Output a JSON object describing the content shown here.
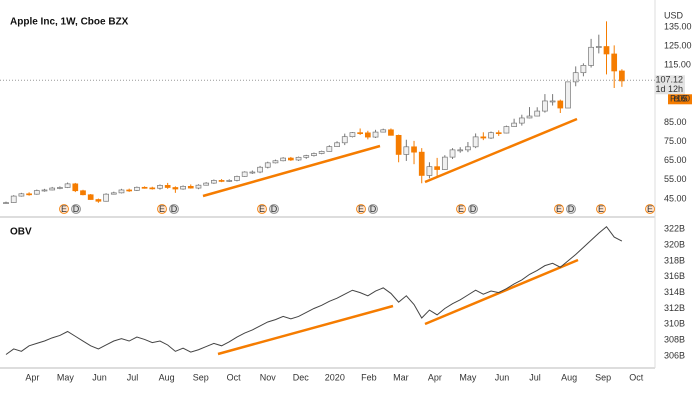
{
  "chart_data": [
    {
      "type": "candlestick",
      "title": "Apple Inc, 1W, Cboe BZX",
      "unit": "USD",
      "open": [
        42.6,
        43.1,
        46.5,
        47.7,
        47.5,
        49.4,
        49.7,
        50.7,
        51.0,
        52.9,
        49.3,
        47.2,
        44.7,
        43.8,
        47.5,
        48.2,
        49.7,
        49.5,
        51.1,
        50.8,
        50.6,
        52.1,
        51.0,
        50.2,
        51.6,
        50.7,
        52.2,
        53.3,
        54.7,
        54.4,
        54.7,
        56.8,
        59.1,
        59.1,
        61.6,
        63.9,
        65.0,
        66.4,
        65.4,
        66.8,
        67.7,
        68.8,
        69.9,
        72.4,
        74.4,
        77.6,
        79.7,
        79.6,
        77.4,
        80.0,
        81.2,
        78.3,
        68.3,
        72.3,
        69.5,
        57.3,
        61.9,
        60.4,
        66.9,
        70.7,
        70.7,
        72.3,
        77.5,
        76.9,
        79.7,
        79.5,
        82.9,
        84.7,
        87.4,
        88.4,
        91.0,
        96.3,
        96.3,
        92.6,
        106.3,
        111.1,
        114.9,
        124.4,
        124.8,
        120.9,
        112.0
      ],
      "high": [
        43.6,
        47.0,
        48.2,
        48.5,
        49.9,
        50.3,
        51.3,
        51.6,
        53.6,
        53.4,
        49.8,
        47.6,
        45.2,
        48.0,
        48.8,
        50.3,
        50.4,
        51.5,
        51.6,
        51.4,
        52.6,
        53.4,
        51.6,
        52.1,
        52.6,
        52.7,
        53.8,
        55.2,
        55.4,
        55.3,
        57.2,
        59.5,
        59.9,
        62.3,
        64.5,
        65.6,
        66.9,
        67.0,
        67.2,
        68.1,
        69.3,
        70.3,
        73.1,
        75.2,
        79.2,
        80.0,
        81.9,
        80.7,
        81.2,
        81.8,
        81.9,
        78.7,
        76.0,
        75.4,
        71.6,
        64.2,
        66.5,
        67.9,
        71.6,
        72.1,
        74.8,
        79.3,
        79.9,
        80.3,
        80.9,
        83.4,
        87.0,
        89.1,
        93.1,
        93.0,
        99.9,
        99.9,
        97.0,
        106.4,
        114.4,
        116.0,
        128.8,
        131.0,
        137.98,
        125.4,
        112.9
      ],
      "low": [
        42.4,
        42.9,
        46.2,
        46.7,
        47.2,
        48.8,
        49.5,
        50.1,
        50.7,
        48.6,
        46.9,
        44.6,
        43.0,
        43.6,
        47.3,
        47.9,
        48.7,
        49.2,
        50.4,
        49.9,
        49.9,
        50.3,
        48.2,
        49.8,
        50.4,
        50.1,
        52.0,
        52.9,
        53.8,
        53.9,
        54.2,
        56.6,
        58.1,
        58.5,
        61.0,
        63.6,
        64.7,
        64.9,
        64.9,
        66.0,
        67.2,
        68.4,
        69.8,
        72.2,
        73.2,
        77.2,
        78.5,
        76.2,
        76.9,
        79.8,
        78.2,
        64.2,
        64.9,
        63.2,
        53.2,
        55.8,
        57.0,
        60.2,
        65.9,
        69.2,
        69.5,
        71.6,
        75.8,
        76.4,
        78.0,
        79.3,
        82.8,
        83.4,
        87.2,
        88.3,
        90.2,
        93.9,
        90.0,
        92.6,
        104.0,
        109.2,
        113.8,
        121.2,
        110.2,
        103.1,
        103.7
      ],
      "close": [
        43.1,
        46.5,
        47.7,
        47.5,
        49.4,
        49.7,
        50.7,
        51.0,
        52.9,
        49.3,
        47.2,
        44.7,
        43.8,
        47.5,
        48.2,
        49.7,
        49.5,
        51.1,
        50.8,
        50.6,
        52.1,
        51.0,
        50.2,
        51.6,
        50.7,
        52.2,
        53.3,
        54.7,
        54.4,
        54.7,
        56.8,
        59.1,
        59.1,
        61.6,
        63.9,
        65.0,
        66.4,
        65.4,
        66.8,
        67.7,
        68.8,
        69.9,
        72.4,
        74.4,
        77.6,
        79.7,
        79.6,
        77.4,
        80.0,
        81.2,
        78.3,
        68.3,
        72.3,
        69.5,
        57.3,
        61.9,
        60.4,
        66.9,
        70.7,
        70.7,
        72.3,
        77.5,
        76.9,
        79.7,
        79.5,
        82.9,
        84.7,
        87.4,
        88.4,
        91.0,
        96.3,
        96.3,
        92.6,
        106.3,
        111.1,
        114.9,
        124.4,
        124.8,
        120.9,
        112.0,
        106.8
      ],
      "up_color": "#f0f0f0",
      "down_color": "#f57c00",
      "last_price": 107.12,
      "countdown": "1d 12h",
      "pre_market_label": "Pre 106.50",
      "event_labels": [
        "E",
        "D",
        "E",
        "D",
        "E",
        "D",
        "E",
        "D",
        "E",
        "D",
        "E",
        "D",
        "E",
        "E"
      ],
      "ylim": [
        36.6,
        141.3
      ],
      "yticks": [
        {
          "value": 45,
          "label": "45.00"
        },
        {
          "value": 55,
          "label": "55.00"
        },
        {
          "value": 65,
          "label": "65.00"
        },
        {
          "value": 75,
          "label": "75.00"
        },
        {
          "value": 85,
          "label": "85.00"
        },
        {
          "value": 115,
          "label": "115.00"
        },
        {
          "value": 125,
          "label": "125.00"
        },
        {
          "value": 135,
          "label": "135.00"
        }
      ]
    },
    {
      "type": "line",
      "title": "OBV",
      "color": "#444444",
      "values": [
        306.2,
        306.9,
        306.6,
        307.3,
        307.6,
        307.9,
        308.3,
        308.6,
        309.1,
        308.5,
        307.9,
        307.3,
        306.9,
        307.4,
        307.9,
        308.2,
        307.9,
        308.4,
        308.1,
        307.7,
        307.9,
        307.4,
        306.6,
        307.0,
        306.5,
        306.8,
        307.2,
        307.6,
        307.3,
        307.8,
        308.4,
        308.9,
        309.3,
        309.8,
        310.3,
        310.6,
        311.0,
        310.7,
        311.0,
        311.5,
        312.0,
        312.4,
        312.9,
        313.3,
        313.8,
        314.3,
        314.0,
        313.6,
        314.2,
        314.6,
        313.9,
        312.8,
        313.6,
        312.5,
        310.8,
        311.8,
        311.2,
        312.0,
        312.6,
        313.1,
        313.7,
        314.3,
        313.8,
        314.2,
        314.0,
        314.5,
        315.1,
        315.6,
        316.3,
        316.8,
        317.4,
        317.7,
        317.2,
        318.0,
        318.8,
        319.7,
        320.6,
        321.5,
        322.3,
        321.0,
        320.5
      ],
      "ylim": [
        304.5,
        322.9
      ],
      "yticks": [
        {
          "value": 306,
          "label": "306B"
        },
        {
          "value": 308,
          "label": "308B"
        },
        {
          "value": 310,
          "label": "310B"
        },
        {
          "value": 312,
          "label": "312B"
        },
        {
          "value": 314,
          "label": "314B"
        },
        {
          "value": 316,
          "label": "316B"
        },
        {
          "value": 318,
          "label": "318B"
        },
        {
          "value": 320,
          "label": "320B"
        },
        {
          "value": 322,
          "label": "322B"
        }
      ],
      "xlim": [
        -0.78,
        84.3
      ],
      "xticks": [
        {
          "value": 3.43,
          "label": "Apr"
        },
        {
          "value": 7.71,
          "label": "May"
        },
        {
          "value": 12.14,
          "label": "Jun"
        },
        {
          "value": 16.43,
          "label": "Jul"
        },
        {
          "value": 20.86,
          "label": "Aug"
        },
        {
          "value": 25.29,
          "label": "Sep"
        },
        {
          "value": 29.57,
          "label": "Oct"
        },
        {
          "value": 34,
          "label": "Nov"
        },
        {
          "value": 38.29,
          "label": "Dec"
        },
        {
          "value": 42.71,
          "label": "2020"
        },
        {
          "value": 47.14,
          "label": "Feb"
        },
        {
          "value": 51.29,
          "label": "Mar"
        },
        {
          "value": 55.71,
          "label": "Apr"
        },
        {
          "value": 60,
          "label": "May"
        },
        {
          "value": 64.43,
          "label": "Jun"
        },
        {
          "value": 68.71,
          "label": "Jul"
        },
        {
          "value": 73.14,
          "label": "Aug"
        },
        {
          "value": 77.57,
          "label": "Sep"
        },
        {
          "value": 81.86,
          "label": "Oct"
        }
      ]
    }
  ]
}
